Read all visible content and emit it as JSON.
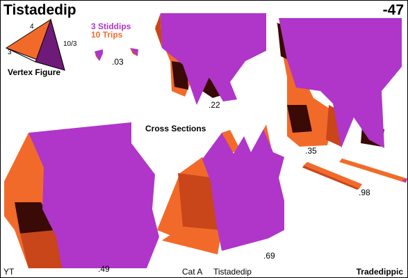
{
  "header": {
    "title": "Tistadedip",
    "number": "-47"
  },
  "vertex_figure": {
    "label": "Vertex Figure",
    "edge_labels": [
      "4",
      "3",
      "10/3"
    ]
  },
  "legend": {
    "items": [
      {
        "text": "3 Stiddips",
        "color": "#b035c9"
      },
      {
        "text": "10 Trips",
        "color": "#f26a2a"
      }
    ]
  },
  "cross_sections": {
    "heading": "Cross Sections",
    "labels": [
      ".03",
      ".22",
      ".35",
      ".49",
      ".69",
      ".98"
    ]
  },
  "footer": {
    "left": "YT",
    "category": "Cat A",
    "name": "Tistadedip",
    "right": "Tradedippic"
  },
  "colors": {
    "magenta": "#b035c9",
    "orange": "#f26a2a",
    "dark_orange": "#c9451a",
    "shadow": "#3a0a06"
  }
}
